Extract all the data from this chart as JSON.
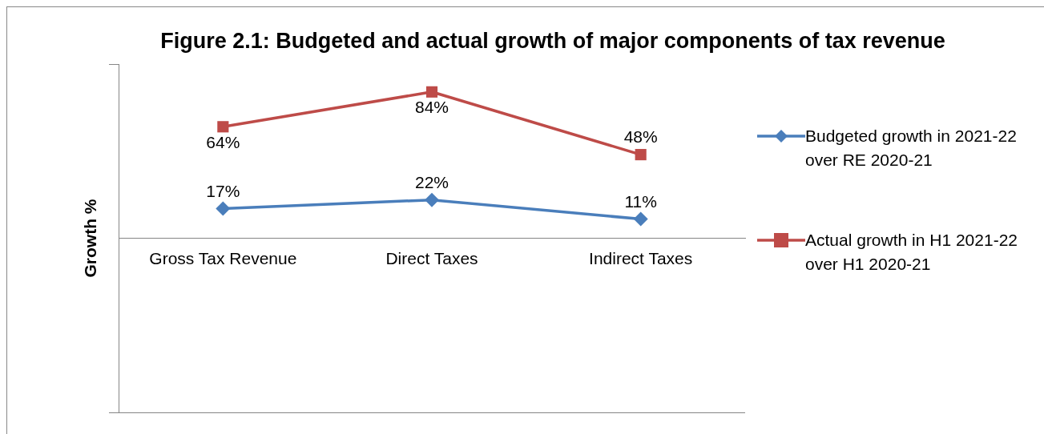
{
  "chart_data": {
    "type": "line",
    "title": "Figure 2.1: Budgeted and actual growth of major components of tax revenue",
    "ylabel": "Growth %",
    "categories": [
      "Gross Tax Revenue",
      "Direct Taxes",
      "Indirect Taxes"
    ],
    "series": [
      {
        "name": "Budgeted growth in 2021-22 over RE 2020-21",
        "color": "#4a7ebb",
        "marker": "diamond",
        "values": [
          17,
          22,
          11
        ],
        "value_labels": [
          "17%",
          "22%",
          "11%"
        ]
      },
      {
        "name": "Actual growth in H1 2021-22 over H1 2020-21",
        "color": "#be4b48",
        "marker": "square",
        "values": [
          64,
          84,
          48
        ],
        "value_labels": [
          "64%",
          "84%",
          "48%"
        ]
      }
    ],
    "ylim": [
      -100,
      100
    ],
    "yticks": [
      {
        "value": -100,
        "label": null
      },
      {
        "value": 100,
        "label": null
      }
    ],
    "tick_labels": "x",
    "grid": false,
    "legend": "right",
    "line_style": "solid"
  }
}
